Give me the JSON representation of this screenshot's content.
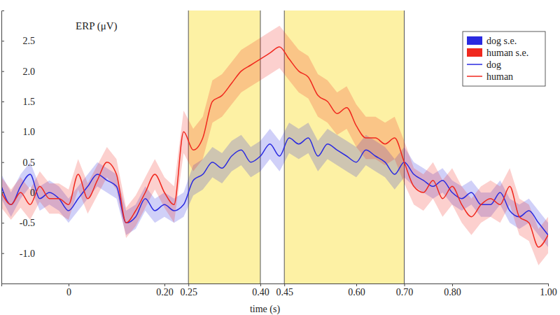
{
  "chart_data": {
    "type": "line",
    "y_label": "ERP (μV)",
    "x_label": "time (s)",
    "x": [
      -0.14,
      -0.12,
      -0.1,
      -0.08,
      -0.06,
      -0.04,
      -0.02,
      0,
      0.02,
      0.04,
      0.06,
      0.08,
      0.1,
      0.12,
      0.14,
      0.16,
      0.18,
      0.2,
      0.22,
      0.24,
      0.26,
      0.28,
      0.3,
      0.32,
      0.34,
      0.36,
      0.38,
      0.4,
      0.42,
      0.44,
      0.46,
      0.48,
      0.5,
      0.52,
      0.54,
      0.56,
      0.58,
      0.6,
      0.62,
      0.64,
      0.66,
      0.68,
      0.7,
      0.72,
      0.74,
      0.76,
      0.78,
      0.8,
      0.82,
      0.84,
      0.86,
      0.88,
      0.9,
      0.92,
      0.94,
      0.96,
      0.98,
      1.0
    ],
    "series": [
      {
        "name": "dog",
        "se_name": "dog s.e.",
        "color": "#2a2ae0",
        "values": [
          0.1,
          -0.2,
          0.1,
          0.3,
          -0.1,
          0.0,
          -0.1,
          -0.3,
          -0.1,
          0.1,
          0.3,
          0.2,
          0.1,
          -0.5,
          -0.4,
          -0.1,
          -0.3,
          -0.2,
          -0.3,
          -0.2,
          0.2,
          0.3,
          0.5,
          0.4,
          0.6,
          0.7,
          0.5,
          0.6,
          0.8,
          0.6,
          0.9,
          0.8,
          0.9,
          0.6,
          0.8,
          0.7,
          0.6,
          0.5,
          0.7,
          0.6,
          0.5,
          0.3,
          0.5,
          0.3,
          0.2,
          0.1,
          0.2,
          0.0,
          -0.1,
          0.0,
          -0.2,
          -0.2,
          0.0,
          -0.3,
          -0.4,
          -0.3,
          -0.5,
          -0.7
        ],
        "error": [
          0.2,
          0.2,
          0.2,
          0.2,
          0.2,
          0.2,
          0.2,
          0.2,
          0.2,
          0.2,
          0.2,
          0.2,
          0.2,
          0.2,
          0.2,
          0.2,
          0.2,
          0.2,
          0.2,
          0.2,
          0.25,
          0.25,
          0.25,
          0.25,
          0.25,
          0.25,
          0.25,
          0.25,
          0.25,
          0.25,
          0.25,
          0.25,
          0.25,
          0.25,
          0.25,
          0.25,
          0.25,
          0.25,
          0.25,
          0.25,
          0.25,
          0.25,
          0.25,
          0.2,
          0.2,
          0.2,
          0.2,
          0.2,
          0.2,
          0.2,
          0.2,
          0.2,
          0.2,
          0.2,
          0.2,
          0.2,
          0.2,
          0.2
        ]
      },
      {
        "name": "human",
        "se_name": "human s.e.",
        "color": "#f0281e",
        "values": [
          0.0,
          -0.2,
          0.0,
          -0.2,
          0.1,
          -0.1,
          -0.1,
          -0.2,
          0.3,
          -0.1,
          0.2,
          0.5,
          0.3,
          -0.5,
          -0.3,
          0.0,
          0.3,
          0.0,
          -0.2,
          1.0,
          0.7,
          0.9,
          1.5,
          1.6,
          1.8,
          2.0,
          2.1,
          2.2,
          2.3,
          2.4,
          2.2,
          2.0,
          1.9,
          1.6,
          1.5,
          1.3,
          1.4,
          1.1,
          0.9,
          0.9,
          0.8,
          0.9,
          0.5,
          0.1,
          0.0,
          0.2,
          -0.1,
          0.1,
          -0.2,
          -0.4,
          -0.2,
          -0.1,
          -0.2,
          0.1,
          -0.4,
          -0.5,
          -0.9,
          -0.7
        ],
        "error": [
          0.25,
          0.25,
          0.25,
          0.25,
          0.25,
          0.25,
          0.25,
          0.25,
          0.25,
          0.25,
          0.25,
          0.25,
          0.25,
          0.25,
          0.25,
          0.25,
          0.25,
          0.25,
          0.3,
          0.35,
          0.35,
          0.35,
          0.35,
          0.35,
          0.35,
          0.35,
          0.35,
          0.35,
          0.35,
          0.35,
          0.35,
          0.35,
          0.35,
          0.35,
          0.35,
          0.35,
          0.35,
          0.35,
          0.35,
          0.35,
          0.35,
          0.35,
          0.35,
          0.3,
          0.3,
          0.3,
          0.3,
          0.3,
          0.3,
          0.3,
          0.3,
          0.3,
          0.3,
          0.3,
          0.3,
          0.3,
          0.3,
          0.3
        ]
      }
    ],
    "shaded_windows": [
      [
        0.25,
        0.4
      ],
      [
        0.45,
        0.7
      ]
    ],
    "xlim": [
      -0.14,
      1.0
    ],
    "xticks": [
      0,
      {
        "value": 0.2,
        "label": "0.20"
      },
      0.25,
      {
        "value": 0.4,
        "label": "0.40"
      },
      0.45,
      {
        "value": 0.6,
        "label": "0.60"
      },
      {
        "value": 0.7,
        "label": "0.70"
      },
      {
        "value": 0.8,
        "label": "0.80"
      },
      {
        "value": 1,
        "label": "1.00"
      }
    ],
    "ylim": [
      -1.5,
      3.0
    ],
    "yticks": [
      {
        "value": -1,
        "label": "-1.0"
      },
      -0.5,
      0,
      0.5,
      {
        "value": 1,
        "label": "1.0"
      },
      1.5,
      {
        "value": 2,
        "label": "2.0"
      },
      2.5
    ],
    "grid": false,
    "legend": "top-right"
  }
}
